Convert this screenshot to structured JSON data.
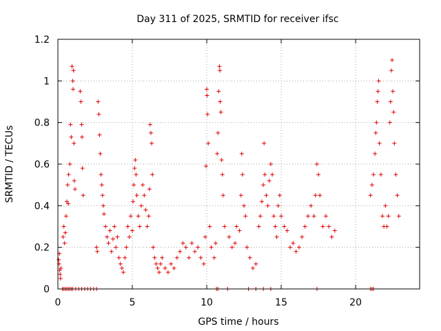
{
  "chart_data": {
    "type": "scatter",
    "title": "Day 311 of 2025, SRMTID for receiver ifsc",
    "xlabel": "GPS time / hours",
    "ylabel": "SRMTID / TECUs",
    "xlim": [
      0,
      24.3
    ],
    "ylim": [
      0,
      1.2
    ],
    "xticks": [
      0,
      5,
      10,
      15,
      20
    ],
    "xtick_labels": [
      "0",
      "5",
      "10",
      "15",
      "20"
    ],
    "yticks": [
      0,
      0.2,
      0.4,
      0.6,
      0.8,
      1.0,
      1.2
    ],
    "ytick_labels": [
      "0",
      "0.2",
      "0.4",
      "0.6",
      "0.8",
      "1",
      "1.2"
    ],
    "grid": true,
    "marker": "+",
    "color": "#e00000",
    "series": [
      {
        "name": "SRMTID",
        "points": [
          [
            0.05,
            0.14
          ],
          [
            0.08,
            0.12
          ],
          [
            0.1,
            0.17
          ],
          [
            0.12,
            0.09
          ],
          [
            0.15,
            0.07
          ],
          [
            0.18,
            0.05
          ],
          [
            0.2,
            0.1
          ],
          [
            0.3,
            0.0
          ],
          [
            0.4,
            0.0
          ],
          [
            0.5,
            0.0
          ],
          [
            0.6,
            0.0
          ],
          [
            0.7,
            0.0
          ],
          [
            0.8,
            0.0
          ],
          [
            0.9,
            0.0
          ],
          [
            1.0,
            0.0
          ],
          [
            1.2,
            0.0
          ],
          [
            1.4,
            0.0
          ],
          [
            1.6,
            0.0
          ],
          [
            1.8,
            0.0
          ],
          [
            2.0,
            0.0
          ],
          [
            2.2,
            0.0
          ],
          [
            2.4,
            0.0
          ],
          [
            2.6,
            0.0
          ],
          [
            0.35,
            0.25
          ],
          [
            0.4,
            0.3
          ],
          [
            0.45,
            0.22
          ],
          [
            0.5,
            0.27
          ],
          [
            0.55,
            0.35
          ],
          [
            0.6,
            0.42
          ],
          [
            0.65,
            0.5
          ],
          [
            0.7,
            0.41
          ],
          [
            0.72,
            0.55
          ],
          [
            0.8,
            0.6
          ],
          [
            0.85,
            0.79
          ],
          [
            0.9,
            0.73
          ],
          [
            0.95,
            1.07
          ],
          [
            1.0,
            1.0
          ],
          [
            1.02,
            0.96
          ],
          [
            1.05,
            1.05
          ],
          [
            1.08,
            0.7
          ],
          [
            1.1,
            0.52
          ],
          [
            1.15,
            0.48
          ],
          [
            1.5,
            0.95
          ],
          [
            1.55,
            0.9
          ],
          [
            1.6,
            0.79
          ],
          [
            1.62,
            0.73
          ],
          [
            1.65,
            0.58
          ],
          [
            1.7,
            0.45
          ],
          [
            2.6,
            0.2
          ],
          [
            2.65,
            0.18
          ],
          [
            2.7,
            0.9
          ],
          [
            2.75,
            0.84
          ],
          [
            2.8,
            0.74
          ],
          [
            2.85,
            0.65
          ],
          [
            2.9,
            0.55
          ],
          [
            2.95,
            0.5
          ],
          [
            3.0,
            0.45
          ],
          [
            3.05,
            0.4
          ],
          [
            3.1,
            0.36
          ],
          [
            3.2,
            0.3
          ],
          [
            3.3,
            0.25
          ],
          [
            3.4,
            0.22
          ],
          [
            3.5,
            0.28
          ],
          [
            3.6,
            0.18
          ],
          [
            3.7,
            0.24
          ],
          [
            3.8,
            0.3
          ],
          [
            3.9,
            0.2
          ],
          [
            4.0,
            0.25
          ],
          [
            4.1,
            0.15
          ],
          [
            4.2,
            0.12
          ],
          [
            4.3,
            0.1
          ],
          [
            4.4,
            0.08
          ],
          [
            4.5,
            0.15
          ],
          [
            4.6,
            0.2
          ],
          [
            4.7,
            0.3
          ],
          [
            4.8,
            0.25
          ],
          [
            4.9,
            0.35
          ],
          [
            5.0,
            0.28
          ],
          [
            5.05,
            0.42
          ],
          [
            5.1,
            0.5
          ],
          [
            5.15,
            0.58
          ],
          [
            5.2,
            0.62
          ],
          [
            5.25,
            0.55
          ],
          [
            5.3,
            0.45
          ],
          [
            5.4,
            0.35
          ],
          [
            5.5,
            0.3
          ],
          [
            5.6,
            0.4
          ],
          [
            5.7,
            0.5
          ],
          [
            5.8,
            0.45
          ],
          [
            5.9,
            0.38
          ],
          [
            6.0,
            0.3
          ],
          [
            6.1,
            0.35
          ],
          [
            6.15,
            0.48
          ],
          [
            6.2,
            0.79
          ],
          [
            6.25,
            0.75
          ],
          [
            6.3,
            0.7
          ],
          [
            6.35,
            0.55
          ],
          [
            6.4,
            0.2
          ],
          [
            6.5,
            0.15
          ],
          [
            6.6,
            0.12
          ],
          [
            6.7,
            0.1
          ],
          [
            6.8,
            0.08
          ],
          [
            6.9,
            0.12
          ],
          [
            7.0,
            0.15
          ],
          [
            7.2,
            0.1
          ],
          [
            7.4,
            0.08
          ],
          [
            7.6,
            0.12
          ],
          [
            7.8,
            0.1
          ],
          [
            8.0,
            0.15
          ],
          [
            8.2,
            0.18
          ],
          [
            8.4,
            0.22
          ],
          [
            8.6,
            0.2
          ],
          [
            8.8,
            0.15
          ],
          [
            9.0,
            0.22
          ],
          [
            9.2,
            0.18
          ],
          [
            9.4,
            0.2
          ],
          [
            9.6,
            0.15
          ],
          [
            9.8,
            0.12
          ],
          [
            9.9,
            0.25
          ],
          [
            9.95,
            0.59
          ],
          [
            10.0,
            0.96
          ],
          [
            10.02,
            0.93
          ],
          [
            10.05,
            0.84
          ],
          [
            10.1,
            0.7
          ],
          [
            10.2,
            0.3
          ],
          [
            10.3,
            0.2
          ],
          [
            10.5,
            0.15
          ],
          [
            10.6,
            0.22
          ],
          [
            10.7,
            0.65
          ],
          [
            10.75,
            0.75
          ],
          [
            10.8,
            0.95
          ],
          [
            10.85,
            1.07
          ],
          [
            10.88,
            1.05
          ],
          [
            10.9,
            0.9
          ],
          [
            10.95,
            0.85
          ],
          [
            11.0,
            0.62
          ],
          [
            11.05,
            0.55
          ],
          [
            11.1,
            0.45
          ],
          [
            11.2,
            0.3
          ],
          [
            11.5,
            0.25
          ],
          [
            11.7,
            0.2
          ],
          [
            11.9,
            0.22
          ],
          [
            12.0,
            0.3
          ],
          [
            12.2,
            0.28
          ],
          [
            12.3,
            0.45
          ],
          [
            12.35,
            0.65
          ],
          [
            12.4,
            0.55
          ],
          [
            12.5,
            0.4
          ],
          [
            12.6,
            0.35
          ],
          [
            12.7,
            0.2
          ],
          [
            12.9,
            0.15
          ],
          [
            13.1,
            0.1
          ],
          [
            13.3,
            0.12
          ],
          [
            13.5,
            0.3
          ],
          [
            13.6,
            0.35
          ],
          [
            13.7,
            0.42
          ],
          [
            13.8,
            0.5
          ],
          [
            13.85,
            0.7
          ],
          [
            13.9,
            0.55
          ],
          [
            14.0,
            0.45
          ],
          [
            14.1,
            0.4
          ],
          [
            14.2,
            0.52
          ],
          [
            14.3,
            0.6
          ],
          [
            14.4,
            0.55
          ],
          [
            14.5,
            0.35
          ],
          [
            14.6,
            0.3
          ],
          [
            14.7,
            0.25
          ],
          [
            14.8,
            0.4
          ],
          [
            14.9,
            0.45
          ],
          [
            15.0,
            0.35
          ],
          [
            15.2,
            0.3
          ],
          [
            15.4,
            0.28
          ],
          [
            15.6,
            0.2
          ],
          [
            15.8,
            0.22
          ],
          [
            16.0,
            0.18
          ],
          [
            16.2,
            0.2
          ],
          [
            16.4,
            0.25
          ],
          [
            16.6,
            0.3
          ],
          [
            16.8,
            0.35
          ],
          [
            17.0,
            0.4
          ],
          [
            17.2,
            0.35
          ],
          [
            17.3,
            0.45
          ],
          [
            17.4,
            0.6
          ],
          [
            17.5,
            0.55
          ],
          [
            17.6,
            0.45
          ],
          [
            17.8,
            0.3
          ],
          [
            18.0,
            0.35
          ],
          [
            18.2,
            0.3
          ],
          [
            18.4,
            0.25
          ],
          [
            18.6,
            0.28
          ],
          [
            12.8,
            0.0
          ],
          [
            13.3,
            0.0
          ],
          [
            13.8,
            0.0
          ],
          [
            14.3,
            0.0
          ],
          [
            17.4,
            0.0
          ],
          [
            21.0,
            0.0
          ],
          [
            21.1,
            0.0
          ],
          [
            21.2,
            0.0
          ],
          [
            10.65,
            0.0
          ],
          [
            10.75,
            0.0
          ],
          [
            11.4,
            0.0
          ],
          [
            21.0,
            0.45
          ],
          [
            21.1,
            0.5
          ],
          [
            21.2,
            0.55
          ],
          [
            21.3,
            0.65
          ],
          [
            21.35,
            0.75
          ],
          [
            21.4,
            0.8
          ],
          [
            21.45,
            0.9
          ],
          [
            21.5,
            0.95
          ],
          [
            21.55,
            1.0
          ],
          [
            21.6,
            0.7
          ],
          [
            21.7,
            0.55
          ],
          [
            21.8,
            0.35
          ],
          [
            21.9,
            0.3
          ],
          [
            22.0,
            0.4
          ],
          [
            22.1,
            0.3
          ],
          [
            22.2,
            0.35
          ],
          [
            22.3,
            0.8
          ],
          [
            22.35,
            0.9
          ],
          [
            22.4,
            1.05
          ],
          [
            22.45,
            1.1
          ],
          [
            22.5,
            0.95
          ],
          [
            22.55,
            0.85
          ],
          [
            22.6,
            0.7
          ],
          [
            22.7,
            0.55
          ],
          [
            22.8,
            0.45
          ],
          [
            22.9,
            0.35
          ]
        ]
      }
    ]
  }
}
